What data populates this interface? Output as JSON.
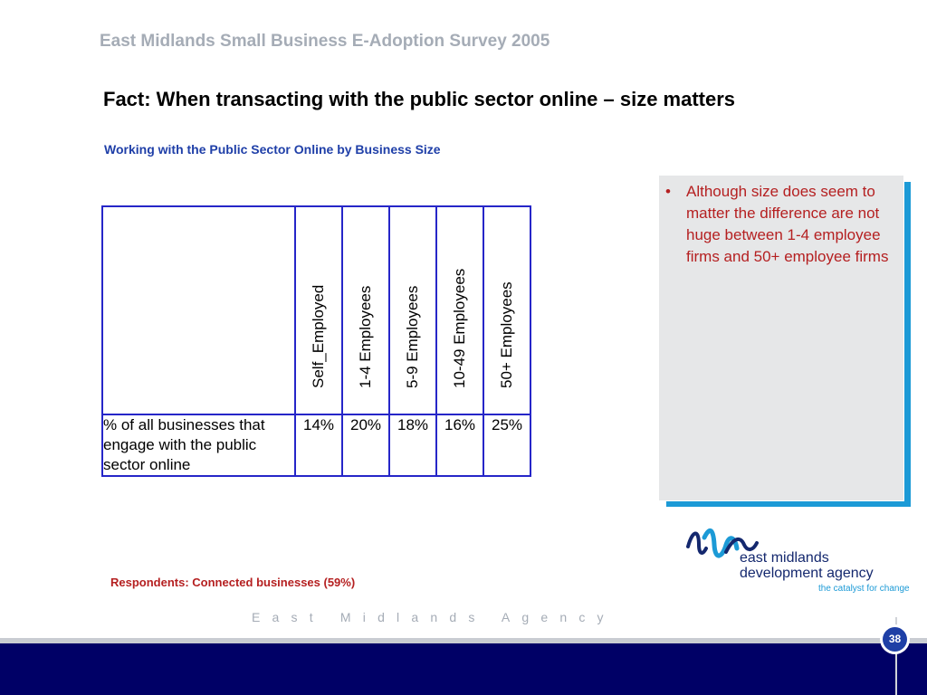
{
  "header": {
    "survey_title": "East Midlands Small Business E-Adoption Survey 2005",
    "fact_heading": "Fact: When transacting with the public sector online – size matters",
    "chart_subtitle": "Working with the Public Sector Online by Business Size"
  },
  "table": {
    "columns": [
      "Self_Employed",
      "1-4 Employees",
      "5-9 Employees",
      "10-49 Employees",
      "50+ Employees"
    ],
    "row_label": "% of all businesses that engage with the public sector online",
    "values": [
      "14%",
      "20%",
      "18%",
      "16%",
      "25%"
    ]
  },
  "note": {
    "bullet": "•",
    "text": "Although size does seem to matter the difference are not huge between 1-4 employee firms and 50+ employee firms"
  },
  "respondents": "Respondents: Connected businesses (59%)",
  "logo": {
    "name_line1": "east midlands",
    "name_line2": "development agency",
    "tagline": "the catalyst for change"
  },
  "footer": {
    "agency": "East Midlands Agency",
    "page_number": "38"
  },
  "colors": {
    "title_gray": "#a5acb6",
    "subtitle_blue": "#1f3fa8",
    "accent_red": "#b52021",
    "table_border": "#2626c8",
    "note_shadow": "#1c9ad6",
    "footer_navy": "#000066"
  }
}
